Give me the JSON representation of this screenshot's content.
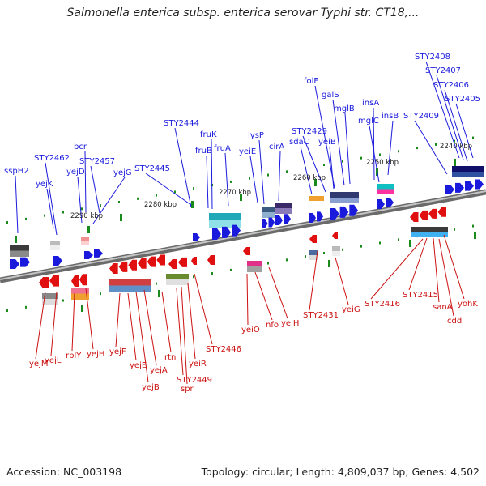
{
  "title": "Salmonella enterica subsp. enterica serovar Typhi str. CT18,...",
  "accession": "Accession: NC_003198",
  "topology": "Topology: circular; Length: 4,809,037 bp; Genes: 4,502",
  "colors": {
    "forward": "#1a1adc",
    "reverse": "#e01010",
    "forward_label": "#1a1adc",
    "reverse_label": "#cc1010",
    "backbone": "#8a8a8a",
    "ticks": "#1a8a1a"
  },
  "scale_labels": [
    "2240 kbp",
    "2250 kbp",
    "2260 kbp",
    "2270 kbp",
    "2280 kbp",
    "2290 kbp"
  ],
  "forward_genes": [
    "STY2408",
    "STY2407",
    "STY2406",
    "STY2405",
    "folE",
    "galS",
    "mglB",
    "insA",
    "insB",
    "STY2409",
    "mglC",
    "STY2429",
    "yeiB",
    "sdaC",
    "lysP",
    "cirA",
    "STY2444",
    "fruK",
    "fruB",
    "fruA",
    "yeiE",
    "bcr",
    "STY2462",
    "STY2457",
    "yejD",
    "yejG",
    "STY2445",
    "sspH2",
    "yejK"
  ],
  "reverse_genes": [
    "yejM",
    "yejL",
    "rplY",
    "yejH",
    "yejF",
    "yejE",
    "yejB",
    "yejA",
    "rtn",
    "STY2449",
    "spr",
    "yeiR",
    "STY2446",
    "yeiO",
    "nfo",
    "yeiH",
    "STY2431",
    "yeiG",
    "STY2416",
    "STY2415",
    "sanA",
    "cdd",
    "yohK"
  ]
}
